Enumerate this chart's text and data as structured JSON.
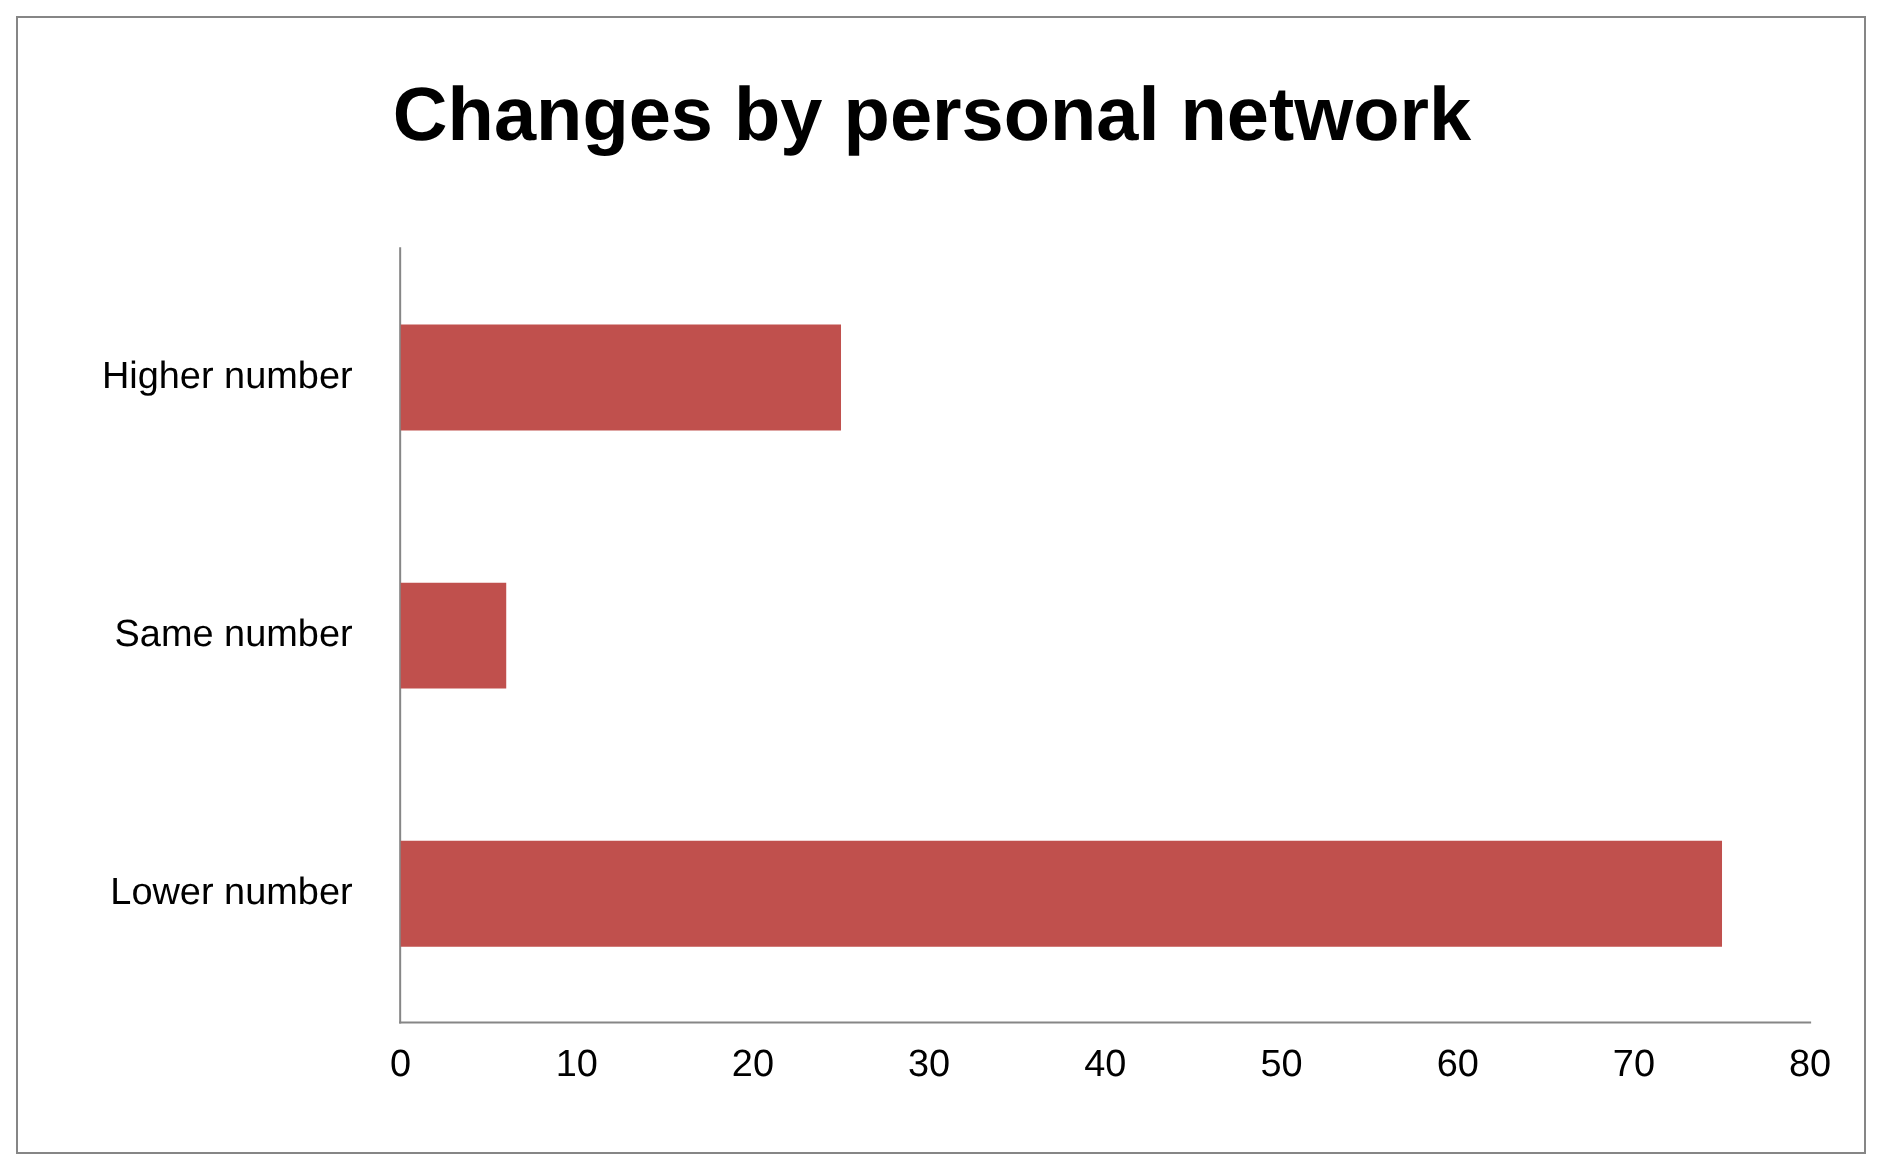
{
  "chart_data": {
    "type": "bar",
    "title": "Changes by personal network",
    "orientation": "horizontal",
    "categories": [
      "Higher number",
      "Same number",
      "Lower number"
    ],
    "values": [
      25,
      6,
      75
    ],
    "color": "#c0504d",
    "xlim": [
      0,
      80
    ],
    "xticks": [
      0,
      10,
      20,
      30,
      40,
      50,
      60,
      70,
      80
    ],
    "grid": false,
    "legend": false
  }
}
